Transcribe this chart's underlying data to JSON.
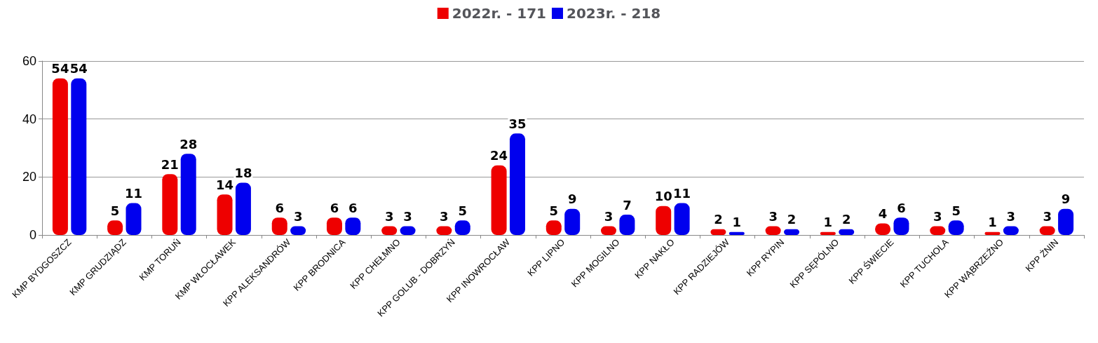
{
  "chart_data": {
    "type": "bar",
    "categories": [
      "KMP BYDGOSZCZ",
      "KMP GRUDZIĄDZ",
      "KMP TORUŃ",
      "KMP WŁOCŁAWEK",
      "KPP ALEKSANDRÓW",
      "KPP BRODNICA",
      "KPP CHEŁMNO",
      "KPP GOLUB - DOBRZYŃ",
      "KPP INOWROCŁAW",
      "KPP LIPNO",
      "KPP MOGILNO",
      "KPP NAKŁO",
      "KPP RADZIEJÓW",
      "KPP RYPIN",
      "KPP SĘPÓLNO",
      "KPP ŚWIECIE",
      "KPP TUCHOLA",
      "KPP WĄBRZEŹNO",
      "KPP ŻNIN"
    ],
    "series": [
      {
        "name": "2022r. - 171",
        "color": "#ee0000",
        "values": [
          54,
          5,
          21,
          14,
          6,
          6,
          3,
          3,
          24,
          5,
          3,
          10,
          2,
          3,
          1,
          4,
          3,
          1,
          3
        ]
      },
      {
        "name": "2023r. - 218",
        "color": "#0000ee",
        "values": [
          54,
          11,
          28,
          18,
          3,
          6,
          3,
          5,
          35,
          9,
          7,
          11,
          1,
          2,
          2,
          6,
          5,
          3,
          9
        ]
      }
    ],
    "ylim": [
      0,
      60
    ],
    "yticks": [
      0,
      20,
      40,
      60
    ],
    "grid": "y",
    "legend": "top",
    "data_labels": true
  }
}
